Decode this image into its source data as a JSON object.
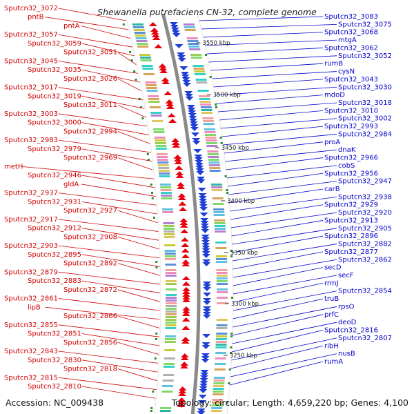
{
  "title": "Shewanella putrefaciens CN-32, complete genome",
  "footer": {
    "accession": "Accession: NC_009438",
    "topology": "Topology: circular; Length: 4,659,220 bp; Genes: 4,100"
  },
  "colors": {
    "left_labels": "#d00000",
    "right_labels": "#0000cc",
    "forward_arrows": "#e8000b",
    "reverse_arrows": "#1f3fd6",
    "backbone": "#8a8a8a"
  },
  "ruler_ticks": [
    "3550 kbp",
    "3500 kbp",
    "3450 kbp",
    "3400 kbp",
    "3350 kbp",
    "3300 kbp",
    "3250 kbp"
  ],
  "left_labels": [
    "Sputcn32_3072",
    "pntB",
    "pntA",
    "Sputcn32_3057",
    "Sputcn32_3059",
    "Sputcn32_3051",
    "Sputcn32_3045",
    "Sputcn32_3035",
    "Sputcn32_3026",
    "Sputcn32_3017",
    "Sputcn32_3019",
    "Sputcn32_3011",
    "Sputcn32_3003",
    "Sputcn32_3000",
    "Sputcn32_2994",
    "Sputcn32_2983",
    "Sputcn32_2979",
    "Sputcn32_2969",
    "metH",
    "Sputcn32_2946",
    "gldA",
    "Sputcn32_2937",
    "Sputcn32_2931",
    "Sputcn32_2927",
    "Sputcn32_2917",
    "Sputcn32_2912",
    "Sputcn32_2908",
    "Sputcn32_2903",
    "Sputcn32_2895",
    "Sputcn32_2892",
    "Sputcn32_2879",
    "Sputcn32_2883",
    "Sputcn32_2872",
    "Sputcn32_2861",
    "lipB",
    "Sputcn32_2866",
    "Sputcn32_2855",
    "Sputcn32_2851",
    "Sputcn32_2856",
    "Sputcn32_2843",
    "Sputcn32_2830",
    "Sputcn32_2818",
    "Sputcn32_2815",
    "Sputcn32_2810"
  ],
  "right_labels": [
    "Sputcn32_3083",
    "Sputcn32_3075",
    "Sputcn32_3068",
    "mtgA",
    "Sputcn32_3062",
    "Sputcn32_3052",
    "rumB",
    "cysN",
    "Sputcn32_3043",
    "Sputcn32_3030",
    "mdoD",
    "Sputcn32_3018",
    "Sputcn32_3010",
    "Sputcn32_3002",
    "Sputcn32_2993",
    "Sputcn32_2984",
    "proA",
    "dnaK",
    "Sputcn32_2966",
    "cobS",
    "Sputcn32_2956",
    "Sputcn32_2947",
    "carB",
    "Sputcn32_2938",
    "Sputcn32_2929",
    "Sputcn32_2920",
    "Sputcn32_2913",
    "Sputcn32_2905",
    "Sputcn32_2896",
    "Sputcn32_2882",
    "Sputcn32_2877",
    "Sputcn32_2862",
    "secD",
    "secF",
    "rrmJ",
    "Sputcn32_2854",
    "truB",
    "rpsO",
    "prfC",
    "deoD",
    "Sputcn32_2816",
    "Sputcn32_2807",
    "ribH",
    "nusB",
    "rumA"
  ]
}
